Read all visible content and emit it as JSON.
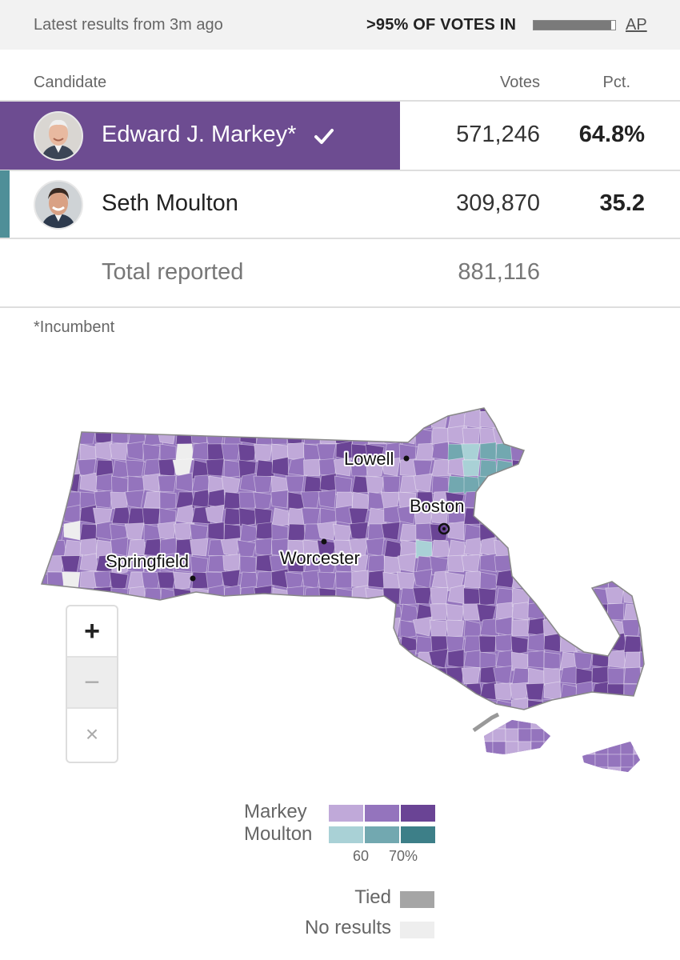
{
  "topbar": {
    "latest": "Latest results from 3m ago",
    "votes_in": ">95% OF VOTES IN",
    "reporting_fraction": 0.95,
    "source": "AP"
  },
  "table": {
    "headers": {
      "candidate": "Candidate",
      "votes": "Votes",
      "pct": "Pct."
    },
    "rows": [
      {
        "name": "Edward J. Markey*",
        "votes": "571,246",
        "pct": "64.8%",
        "winner": true,
        "color": "#6d4c91"
      },
      {
        "name": "Seth Moulton",
        "votes": "309,870",
        "pct": "35.2",
        "winner": false,
        "color": "#4f8f98"
      }
    ],
    "total": {
      "label": "Total reported",
      "votes": "881,116"
    }
  },
  "footnote": "*Incumbent",
  "map": {
    "cities": [
      {
        "name": "Lowell"
      },
      {
        "name": "Boston"
      },
      {
        "name": "Worcester"
      },
      {
        "name": "Springfield"
      }
    ],
    "zoom": {
      "in": "+",
      "out": "−",
      "reset": "×"
    }
  },
  "legend": {
    "markey_label": "Markey",
    "moulton_label": "Moulton",
    "markey_colors": [
      "#c0a9d9",
      "#9474bd",
      "#6a4495"
    ],
    "moulton_colors": [
      "#a9d1d6",
      "#72a8b0",
      "#3d7f88"
    ],
    "tick_60": "60",
    "tick_70": "70%",
    "tied_label": "Tied",
    "tied_color": "#a5a5a5",
    "no_results_label": "No results",
    "no_results_color": "#eeeeee"
  }
}
